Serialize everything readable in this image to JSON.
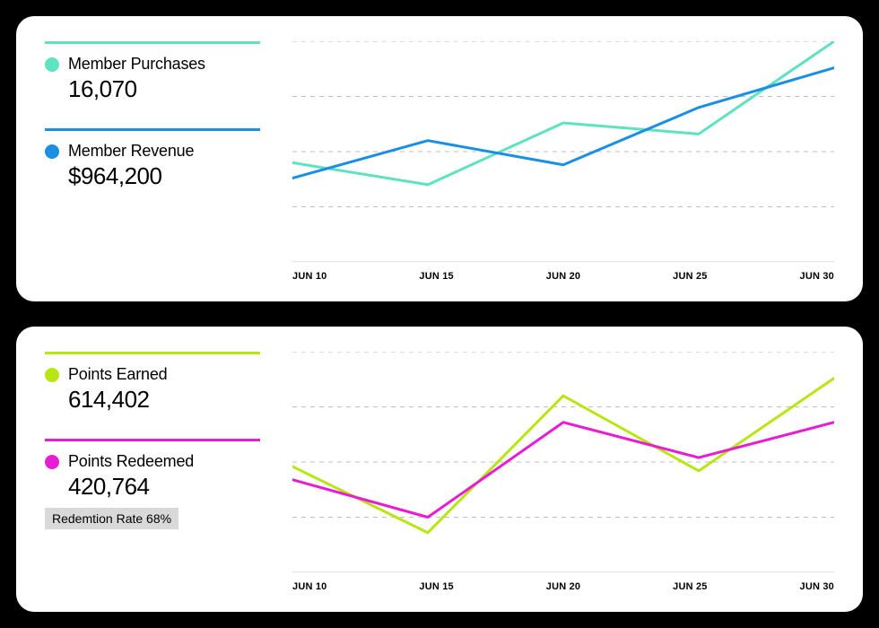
{
  "cards": [
    {
      "legend": [
        {
          "label": "Member Purchases",
          "value": "16,070",
          "color": "#5ee2c0"
        },
        {
          "label": "Member Revenue",
          "value": "$964,200",
          "color": "#1a8fe3"
        }
      ],
      "badge": null,
      "chart": {
        "type": "line",
        "x_labels": [
          "JUN 10",
          "JUN 15",
          "JUN 20",
          "JUN 25",
          "JUN 30"
        ],
        "x_positions": [
          0,
          0.25,
          0.5,
          0.75,
          1.0
        ],
        "ylim": [
          0,
          100
        ],
        "gridlines_y": [
          25,
          50,
          75,
          100
        ],
        "grid_color": "#bfbfbf",
        "grid_dash": "5,5",
        "axis_color": "#bfbfbf",
        "background_color": "#ffffff",
        "line_width": 3,
        "series": [
          {
            "name": "Member Purchases",
            "color": "#5ee2c0",
            "points": [
              [
                0,
                45
              ],
              [
                0.25,
                35
              ],
              [
                0.5,
                63
              ],
              [
                0.75,
                58
              ],
              [
                1.0,
                100
              ]
            ]
          },
          {
            "name": "Member Revenue",
            "color": "#1a8fe3",
            "points": [
              [
                0,
                38
              ],
              [
                0.25,
                55
              ],
              [
                0.5,
                44
              ],
              [
                0.75,
                70
              ],
              [
                1.0,
                88
              ]
            ]
          }
        ],
        "axis_label_fontsize": 11
      }
    },
    {
      "legend": [
        {
          "label": "Points Earned",
          "value": "614,402",
          "color": "#b8e613"
        },
        {
          "label": "Points Redeemed",
          "value": "420,764",
          "color": "#e81cd2"
        }
      ],
      "badge": "Redemtion Rate 68%",
      "chart": {
        "type": "line",
        "x_labels": [
          "JUN 10",
          "JUN 15",
          "JUN 20",
          "JUN 25",
          "JUN 30"
        ],
        "x_positions": [
          0,
          0.25,
          0.5,
          0.75,
          1.0
        ],
        "ylim": [
          0,
          100
        ],
        "gridlines_y": [
          25,
          50,
          75,
          100
        ],
        "grid_color": "#bfbfbf",
        "grid_dash": "5,5",
        "axis_color": "#bfbfbf",
        "background_color": "#ffffff",
        "line_width": 3,
        "series": [
          {
            "name": "Points Earned",
            "color": "#b8e613",
            "points": [
              [
                0,
                48
              ],
              [
                0.25,
                18
              ],
              [
                0.5,
                80
              ],
              [
                0.75,
                46
              ],
              [
                1.0,
                88
              ]
            ]
          },
          {
            "name": "Points Redeemed",
            "color": "#e81cd2",
            "points": [
              [
                0,
                42
              ],
              [
                0.25,
                25
              ],
              [
                0.5,
                68
              ],
              [
                0.75,
                52
              ],
              [
                1.0,
                68
              ]
            ]
          }
        ],
        "axis_label_fontsize": 11
      }
    }
  ]
}
